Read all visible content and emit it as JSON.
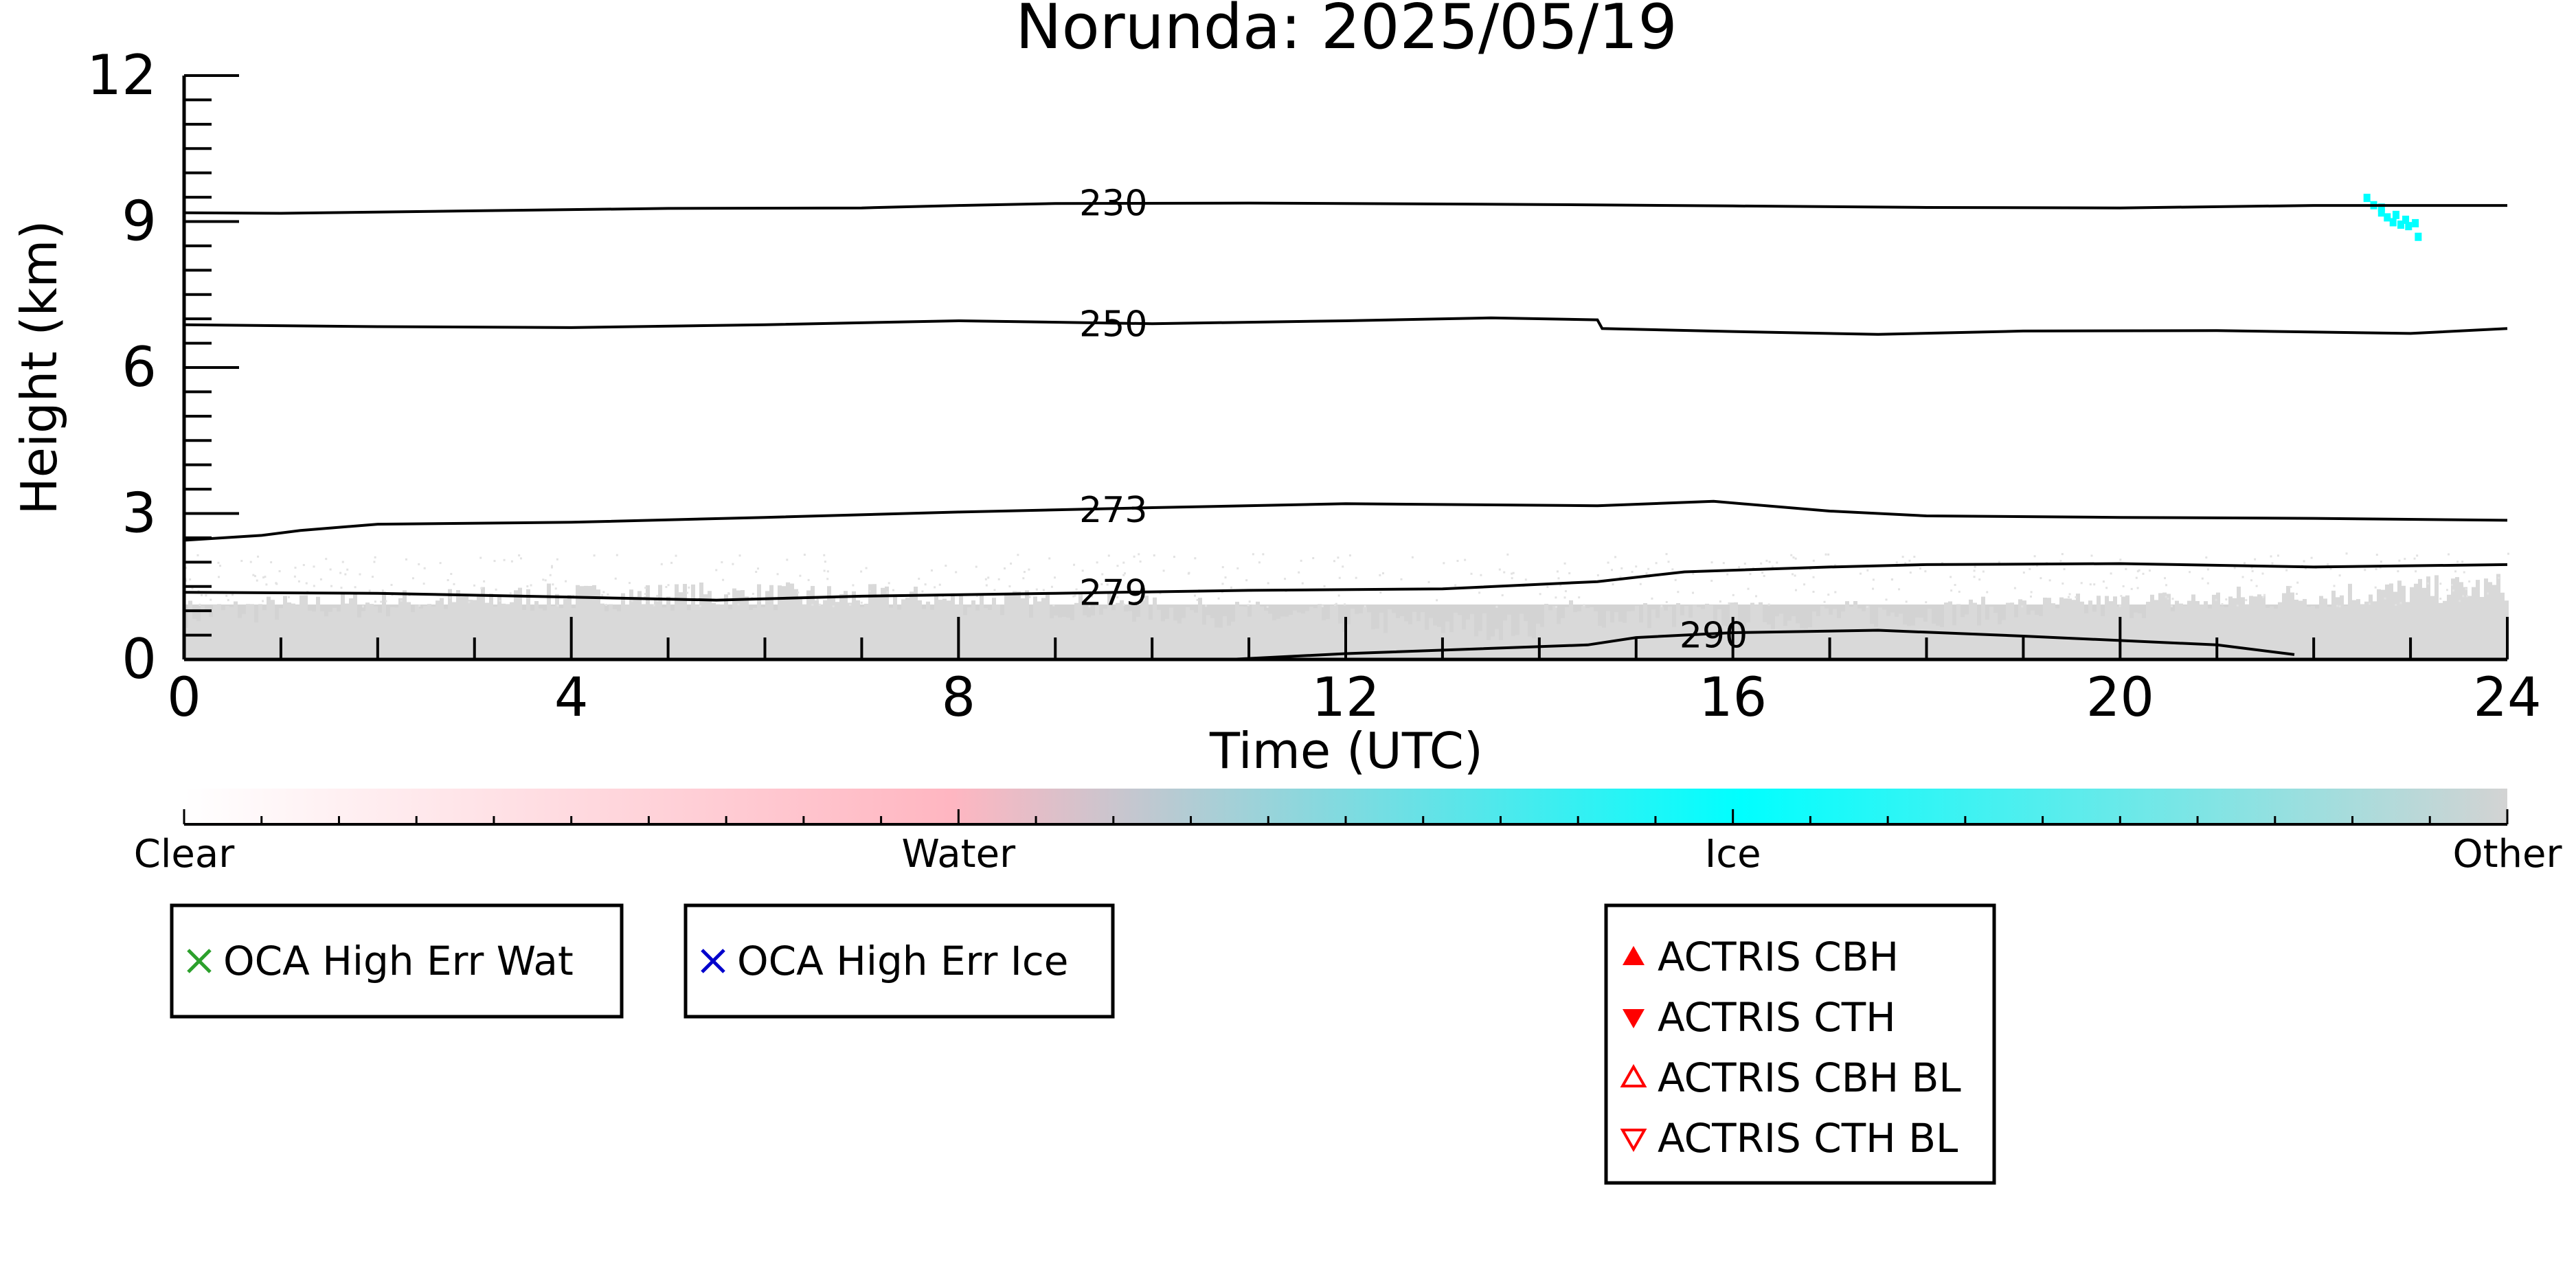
{
  "chart_data": {
    "type": "line",
    "title": "Norunda: 2025/05/19",
    "xlabel": "Time (UTC)",
    "ylabel": "Height (km)",
    "xlim": [
      0,
      24
    ],
    "ylim": [
      0,
      12
    ],
    "x_ticks": [
      "0",
      "4",
      "8",
      "12",
      "16",
      "20",
      "24"
    ],
    "y_ticks": [
      "0",
      "3",
      "6",
      "9",
      "12"
    ],
    "series": [
      {
        "name": "230",
        "label_at": [
          9.6,
          9.38
        ],
        "points": [
          [
            0,
            9.18
          ],
          [
            1,
            9.17
          ],
          [
            3,
            9.22
          ],
          [
            5,
            9.27
          ],
          [
            7,
            9.28
          ],
          [
            8,
            9.33
          ],
          [
            9,
            9.37
          ],
          [
            11,
            9.38
          ],
          [
            14,
            9.35
          ],
          [
            16,
            9.32
          ],
          [
            18,
            9.29
          ],
          [
            20,
            9.28
          ],
          [
            22,
            9.33
          ],
          [
            24,
            9.33
          ]
        ]
      },
      {
        "name": "250",
        "label_at": [
          9.6,
          6.9
        ],
        "points": [
          [
            0,
            6.88
          ],
          [
            2,
            6.84
          ],
          [
            4,
            6.82
          ],
          [
            6,
            6.88
          ],
          [
            8,
            6.96
          ],
          [
            10,
            6.9
          ],
          [
            12,
            6.96
          ],
          [
            13.5,
            7.02
          ],
          [
            14.6,
            6.98
          ],
          [
            14.65,
            6.8
          ],
          [
            16,
            6.74
          ],
          [
            17.5,
            6.68
          ],
          [
            19,
            6.75
          ],
          [
            21,
            6.76
          ],
          [
            23,
            6.7
          ],
          [
            24,
            6.8
          ]
        ]
      },
      {
        "name": "273",
        "label_at": [
          9.6,
          3.08
        ],
        "points": [
          [
            0,
            2.45
          ],
          [
            0.8,
            2.55
          ],
          [
            1.2,
            2.65
          ],
          [
            2,
            2.78
          ],
          [
            4,
            2.82
          ],
          [
            6,
            2.92
          ],
          [
            8,
            3.03
          ],
          [
            10,
            3.12
          ],
          [
            12,
            3.2
          ],
          [
            14.6,
            3.16
          ],
          [
            15.8,
            3.25
          ],
          [
            17,
            3.05
          ],
          [
            18,
            2.95
          ],
          [
            20,
            2.92
          ],
          [
            22,
            2.9
          ],
          [
            24,
            2.86
          ]
        ]
      },
      {
        "name": "279",
        "label_at": [
          9.6,
          1.38
        ],
        "points": [
          [
            0,
            1.38
          ],
          [
            2,
            1.36
          ],
          [
            4,
            1.28
          ],
          [
            5.5,
            1.22
          ],
          [
            7,
            1.3
          ],
          [
            9,
            1.36
          ],
          [
            11,
            1.42
          ],
          [
            13,
            1.45
          ],
          [
            14.6,
            1.6
          ],
          [
            15.5,
            1.8
          ],
          [
            17,
            1.9
          ],
          [
            18,
            1.95
          ],
          [
            20,
            1.97
          ],
          [
            22,
            1.9
          ],
          [
            24,
            1.95
          ]
        ]
      },
      {
        "name": "290",
        "label_at": [
          15.8,
          0.5
        ],
        "points": [
          [
            10.8,
            0.0
          ],
          [
            12,
            0.12
          ],
          [
            14.5,
            0.3
          ],
          [
            15,
            0.45
          ],
          [
            16,
            0.55
          ],
          [
            17.5,
            0.6
          ],
          [
            19,
            0.48
          ],
          [
            21,
            0.3
          ],
          [
            21.8,
            0.1
          ]
        ]
      }
    ],
    "colorbar": {
      "labels": [
        "Clear",
        "Water",
        "Ice",
        "Other"
      ],
      "stops": [
        "#ffffff",
        "#ffb6c1",
        "#00ffff",
        "#d3d3d3"
      ]
    },
    "legends": [
      {
        "entries": [
          {
            "label": "OCA High Err Wat",
            "marker": "x",
            "color": "#2ca02c"
          }
        ]
      },
      {
        "entries": [
          {
            "label": "OCA High Err Ice",
            "marker": "x",
            "color": "#0000cc"
          }
        ]
      },
      {
        "entries": [
          {
            "label": "ACTRIS CBH",
            "marker": "triangle-up-filled",
            "color": "#ff0000"
          },
          {
            "label": "ACTRIS CTH",
            "marker": "triangle-down-filled",
            "color": "#ff0000"
          },
          {
            "label": "ACTRIS CBH BL",
            "marker": "triangle-up-open",
            "color": "#ff0000"
          },
          {
            "label": "ACTRIS CTH BL",
            "marker": "triangle-down-open",
            "color": "#ff0000"
          }
        ]
      }
    ],
    "colors": {
      "other_fill": "#d3d3d3",
      "ice": "#00ffff",
      "water": "#ffb6c1",
      "line": "#000000"
    }
  }
}
